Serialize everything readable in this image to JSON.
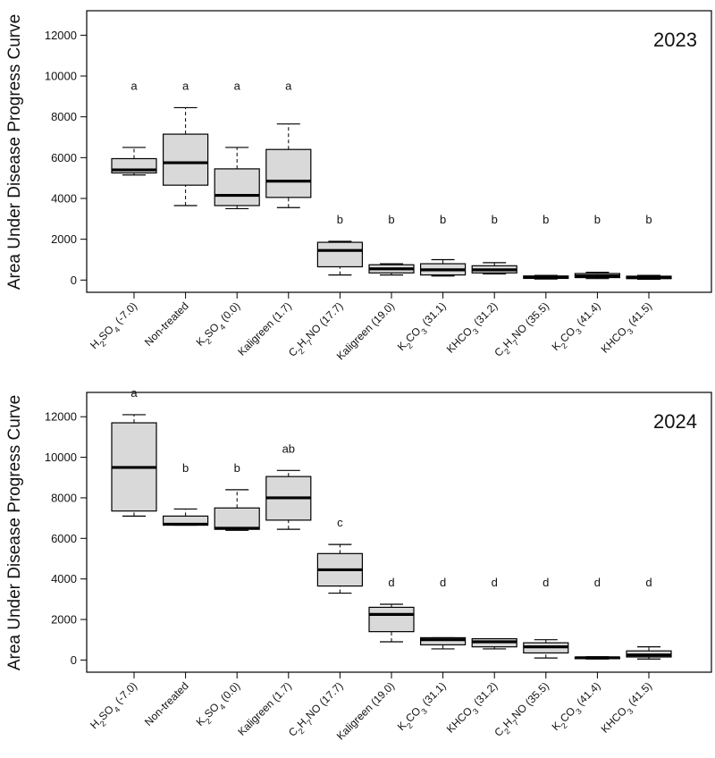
{
  "figure": {
    "box_fill": "#d9d9d9",
    "line_color": "#000000"
  },
  "chart_data": [
    {
      "type": "boxplot",
      "title": "2023",
      "xlabel": "",
      "ylabel": "Area Under Disease Progress Curve",
      "ylim": [
        -600,
        13200
      ],
      "yticks": [
        0,
        2000,
        4000,
        6000,
        8000,
        10000,
        12000
      ],
      "yticklabels": [
        "0",
        "2000",
        "4000",
        "6000",
        "8000",
        "10000",
        "12000"
      ],
      "grid": false,
      "categories": [
        {
          "parts": [
            [
              "H",
              ""
            ],
            [
              "2",
              "sub"
            ],
            [
              "SO",
              ""
            ],
            [
              "4",
              "sub"
            ],
            [
              " (-7.0)",
              ""
            ]
          ]
        },
        {
          "parts": [
            [
              "Non-treated",
              ""
            ]
          ]
        },
        {
          "parts": [
            [
              "K",
              ""
            ],
            [
              "2",
              "sub"
            ],
            [
              "SO",
              ""
            ],
            [
              "4",
              "sub"
            ],
            [
              " (0.0)",
              ""
            ]
          ]
        },
        {
          "parts": [
            [
              "Kaligreen (1.7)",
              ""
            ]
          ]
        },
        {
          "parts": [
            [
              "C",
              ""
            ],
            [
              "2",
              "sub"
            ],
            [
              "H",
              ""
            ],
            [
              "7",
              "sub"
            ],
            [
              "NO (17.7)",
              ""
            ]
          ]
        },
        {
          "parts": [
            [
              "Kaligreen (19.0)",
              ""
            ]
          ]
        },
        {
          "parts": [
            [
              "K",
              ""
            ],
            [
              "2",
              "sub"
            ],
            [
              "CO",
              ""
            ],
            [
              "3",
              "sub"
            ],
            [
              " (31.1)",
              ""
            ]
          ]
        },
        {
          "parts": [
            [
              "KHCO",
              ""
            ],
            [
              "3",
              "sub"
            ],
            [
              " (31.2)",
              ""
            ]
          ]
        },
        {
          "parts": [
            [
              "C",
              ""
            ],
            [
              "2",
              "sub"
            ],
            [
              "H",
              ""
            ],
            [
              "7",
              "sub"
            ],
            [
              "NO (35.5)",
              ""
            ]
          ]
        },
        {
          "parts": [
            [
              "K",
              ""
            ],
            [
              "2",
              "sub"
            ],
            [
              "CO",
              ""
            ],
            [
              "3",
              "sub"
            ],
            [
              " (41.4)",
              ""
            ]
          ]
        },
        {
          "parts": [
            [
              "KHCO",
              ""
            ],
            [
              "3",
              "sub"
            ],
            [
              " (41.5)",
              ""
            ]
          ]
        }
      ],
      "boxes": [
        {
          "min": 5150,
          "q1": 5250,
          "median": 5400,
          "q3": 5950,
          "max": 6500,
          "letter": "a"
        },
        {
          "min": 3650,
          "q1": 4650,
          "median": 5750,
          "q3": 7150,
          "max": 8450,
          "letter": "a"
        },
        {
          "min": 3500,
          "q1": 3650,
          "median": 4150,
          "q3": 5450,
          "max": 6500,
          "letter": "a"
        },
        {
          "min": 3550,
          "q1": 4050,
          "median": 4850,
          "q3": 6400,
          "max": 7650,
          "letter": "a"
        },
        {
          "min": 250,
          "q1": 650,
          "median": 1450,
          "q3": 1850,
          "max": 1900,
          "letter": "b"
        },
        {
          "min": 250,
          "q1": 350,
          "median": 550,
          "q3": 750,
          "max": 800,
          "letter": "b"
        },
        {
          "min": 200,
          "q1": 250,
          "median": 500,
          "q3": 800,
          "max": 1000,
          "letter": "b"
        },
        {
          "min": 300,
          "q1": 350,
          "median": 500,
          "q3": 700,
          "max": 850,
          "letter": "b"
        },
        {
          "min": 50,
          "q1": 80,
          "median": 130,
          "q3": 200,
          "max": 230,
          "letter": "b"
        },
        {
          "min": 70,
          "q1": 120,
          "median": 200,
          "q3": 320,
          "max": 380,
          "letter": "b"
        },
        {
          "min": 40,
          "q1": 70,
          "median": 120,
          "q3": 190,
          "max": 230,
          "letter": "b"
        }
      ]
    },
    {
      "type": "boxplot",
      "title": "2024",
      "xlabel": "",
      "ylabel": "Area Under Disease Progress Curve",
      "ylim": [
        -600,
        13200
      ],
      "yticks": [
        0,
        2000,
        4000,
        6000,
        8000,
        10000,
        12000
      ],
      "yticklabels": [
        "0",
        "2000",
        "4000",
        "6000",
        "8000",
        "10000",
        "12000"
      ],
      "grid": false,
      "categories": [
        {
          "parts": [
            [
              "H",
              ""
            ],
            [
              "2",
              "sub"
            ],
            [
              "SO",
              ""
            ],
            [
              "4",
              "sub"
            ],
            [
              " (-7.0)",
              ""
            ]
          ]
        },
        {
          "parts": [
            [
              "Non-treated",
              ""
            ]
          ]
        },
        {
          "parts": [
            [
              "K",
              ""
            ],
            [
              "2",
              "sub"
            ],
            [
              "SO",
              ""
            ],
            [
              "4",
              "sub"
            ],
            [
              " (0.0)",
              ""
            ]
          ]
        },
        {
          "parts": [
            [
              "Kaligreen (1.7)",
              ""
            ]
          ]
        },
        {
          "parts": [
            [
              "C",
              ""
            ],
            [
              "2",
              "sub"
            ],
            [
              "H",
              ""
            ],
            [
              "7",
              "sub"
            ],
            [
              "NO (17.7)",
              ""
            ]
          ]
        },
        {
          "parts": [
            [
              "Kaligreen (19.0)",
              ""
            ]
          ]
        },
        {
          "parts": [
            [
              "K",
              ""
            ],
            [
              "2",
              "sub"
            ],
            [
              "CO",
              ""
            ],
            [
              "3",
              "sub"
            ],
            [
              " (31.1)",
              ""
            ]
          ]
        },
        {
          "parts": [
            [
              "KHCO",
              ""
            ],
            [
              "3",
              "sub"
            ],
            [
              " (31.2)",
              ""
            ]
          ]
        },
        {
          "parts": [
            [
              "C",
              ""
            ],
            [
              "2",
              "sub"
            ],
            [
              "H",
              ""
            ],
            [
              "7",
              "sub"
            ],
            [
              "NO (35.5)",
              ""
            ]
          ]
        },
        {
          "parts": [
            [
              "K",
              ""
            ],
            [
              "2",
              "sub"
            ],
            [
              "CO",
              ""
            ],
            [
              "3",
              "sub"
            ],
            [
              " (41.4)",
              ""
            ]
          ]
        },
        {
          "parts": [
            [
              "KHCO",
              ""
            ],
            [
              "3",
              "sub"
            ],
            [
              " (41.5)",
              ""
            ]
          ]
        }
      ],
      "boxes": [
        {
          "min": 7100,
          "q1": 7350,
          "median": 9500,
          "q3": 11700,
          "max": 12100,
          "letter": "a"
        },
        {
          "min": 6650,
          "q1": 6650,
          "median": 6700,
          "q3": 7100,
          "max": 7450,
          "letter": "b"
        },
        {
          "min": 6400,
          "q1": 6450,
          "median": 6500,
          "q3": 7500,
          "max": 8400,
          "letter": "b"
        },
        {
          "min": 6450,
          "q1": 6900,
          "median": 8000,
          "q3": 9050,
          "max": 9350,
          "letter": "ab"
        },
        {
          "min": 3300,
          "q1": 3650,
          "median": 4450,
          "q3": 5250,
          "max": 5700,
          "letter": "c"
        },
        {
          "min": 900,
          "q1": 1400,
          "median": 2250,
          "q3": 2600,
          "max": 2750,
          "letter": "d"
        },
        {
          "min": 550,
          "q1": 750,
          "median": 1000,
          "q3": 1100,
          "max": 1100,
          "letter": "d"
        },
        {
          "min": 550,
          "q1": 650,
          "median": 900,
          "q3": 1050,
          "max": 1050,
          "letter": "d"
        },
        {
          "min": 100,
          "q1": 350,
          "median": 650,
          "q3": 850,
          "max": 1000,
          "letter": "d"
        },
        {
          "min": 50,
          "q1": 70,
          "median": 110,
          "q3": 140,
          "max": 160,
          "letter": "d"
        },
        {
          "min": 50,
          "q1": 150,
          "median": 250,
          "q3": 450,
          "max": 650,
          "letter": "d"
        }
      ]
    }
  ]
}
